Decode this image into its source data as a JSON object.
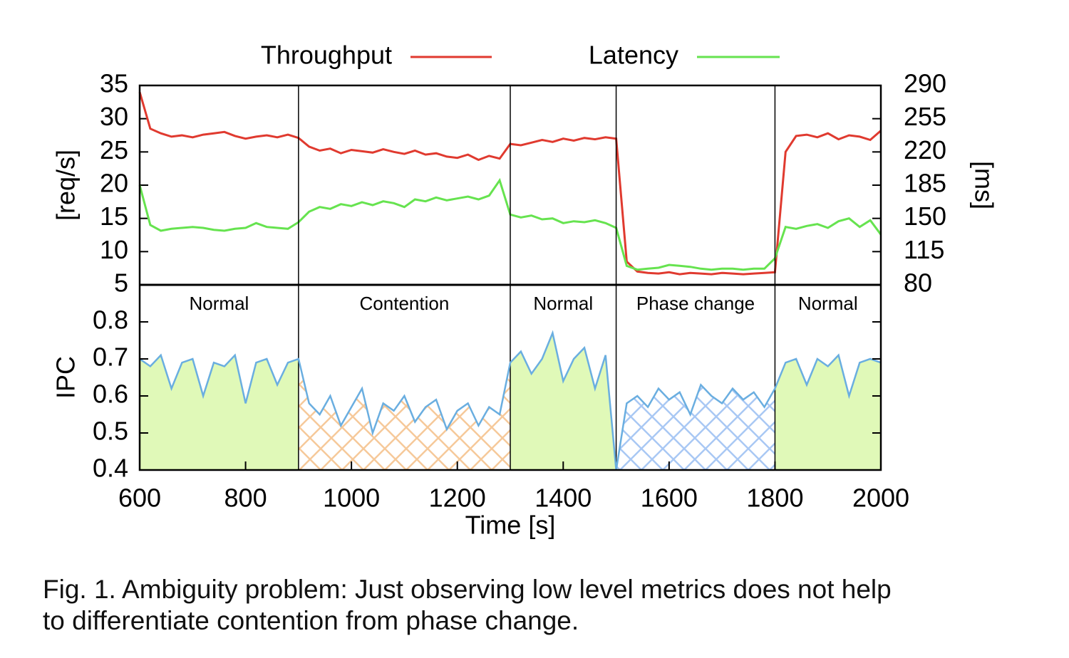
{
  "chart_data": [
    {
      "type": "line",
      "legend": "top",
      "ylabel": "[req/s]",
      "y2label": "[ms]",
      "xlim": [
        600,
        2000
      ],
      "ylim": [
        5,
        35
      ],
      "yticks": [
        5,
        10,
        15,
        20,
        25,
        30,
        35
      ],
      "y2lim": [
        80,
        290
      ],
      "y2ticks": [
        80,
        115,
        150,
        185,
        220,
        255,
        290
      ],
      "x": [
        600,
        620,
        640,
        660,
        680,
        700,
        720,
        740,
        760,
        780,
        800,
        820,
        840,
        860,
        880,
        900,
        920,
        940,
        960,
        980,
        1000,
        1020,
        1040,
        1060,
        1080,
        1100,
        1120,
        1140,
        1160,
        1180,
        1200,
        1220,
        1240,
        1260,
        1280,
        1300,
        1320,
        1340,
        1360,
        1380,
        1400,
        1420,
        1440,
        1460,
        1480,
        1500,
        1520,
        1540,
        1560,
        1580,
        1600,
        1620,
        1640,
        1660,
        1680,
        1700,
        1720,
        1740,
        1760,
        1780,
        1800,
        1820,
        1840,
        1860,
        1880,
        1900,
        1920,
        1940,
        1960,
        1980,
        2000
      ],
      "series": [
        {
          "name": "Throughput",
          "color": "#e03a2f",
          "values": [
            34,
            28.5,
            27.8,
            27.3,
            27.5,
            27.2,
            27.6,
            27.8,
            28,
            27.4,
            27,
            27.3,
            27.5,
            27.2,
            27.6,
            27.1,
            25.8,
            25.2,
            25.5,
            24.8,
            25.3,
            25.1,
            24.9,
            25.4,
            25,
            24.7,
            25.2,
            24.6,
            24.8,
            24.3,
            24.1,
            24.6,
            23.8,
            24.4,
            24,
            26.2,
            26,
            26.4,
            26.8,
            26.5,
            27,
            26.7,
            27.1,
            26.9,
            27.2,
            27,
            8.5,
            7,
            6.8,
            6.7,
            6.9,
            6.6,
            6.8,
            6.7,
            6.6,
            6.8,
            6.7,
            6.6,
            6.7,
            6.8,
            6.9,
            25,
            27.4,
            27.6,
            27.2,
            27.8,
            26.9,
            27.5,
            27.3,
            26.8,
            28.2
          ]
        },
        {
          "name": "Latency",
          "color": "#66e34f",
          "axis": "y2",
          "values": [
            185,
            143,
            137,
            139,
            140,
            141,
            140,
            138,
            137,
            139,
            140,
            145,
            141,
            140,
            139,
            146,
            157,
            162,
            160,
            165,
            163,
            167,
            164,
            168,
            166,
            162,
            170,
            168,
            172,
            169,
            171,
            173,
            170,
            174,
            190,
            154,
            151,
            153,
            149,
            150,
            145,
            147,
            146,
            148,
            145,
            140,
            100,
            96,
            97,
            98,
            101,
            100,
            99,
            97,
            96,
            97,
            97,
            96,
            97,
            97,
            108,
            141,
            139,
            142,
            144,
            140,
            147,
            150,
            141,
            148,
            133
          ]
        }
      ]
    },
    {
      "type": "area",
      "ylabel": "IPC",
      "xlabel": "Time [s]",
      "xlim": [
        600,
        2000
      ],
      "xticks": [
        600,
        800,
        1000,
        1200,
        1400,
        1600,
        1800,
        2000
      ],
      "ylim": [
        0.4,
        0.9
      ],
      "yticks": [
        0.4,
        0.5,
        0.6,
        0.7,
        0.8
      ],
      "x": [
        600,
        620,
        640,
        660,
        680,
        700,
        720,
        740,
        760,
        780,
        800,
        820,
        840,
        860,
        880,
        900,
        920,
        940,
        960,
        980,
        1000,
        1020,
        1040,
        1060,
        1080,
        1100,
        1120,
        1140,
        1160,
        1180,
        1200,
        1220,
        1240,
        1260,
        1280,
        1300,
        1320,
        1340,
        1360,
        1380,
        1400,
        1420,
        1440,
        1460,
        1480,
        1500,
        1520,
        1540,
        1560,
        1580,
        1600,
        1620,
        1640,
        1660,
        1680,
        1700,
        1720,
        1740,
        1760,
        1780,
        1800,
        1820,
        1840,
        1860,
        1880,
        1900,
        1920,
        1940,
        1960,
        1980,
        2000
      ],
      "color": "#6aaee0",
      "values": [
        0.7,
        0.68,
        0.71,
        0.62,
        0.69,
        0.7,
        0.6,
        0.69,
        0.68,
        0.71,
        0.58,
        0.69,
        0.7,
        0.63,
        0.69,
        0.7,
        0.58,
        0.55,
        0.6,
        0.52,
        0.57,
        0.62,
        0.5,
        0.58,
        0.56,
        0.6,
        0.53,
        0.57,
        0.59,
        0.51,
        0.56,
        0.58,
        0.52,
        0.57,
        0.55,
        0.69,
        0.72,
        0.66,
        0.7,
        0.77,
        0.64,
        0.7,
        0.73,
        0.62,
        0.71,
        0.4,
        0.58,
        0.6,
        0.57,
        0.62,
        0.59,
        0.61,
        0.55,
        0.63,
        0.6,
        0.58,
        0.62,
        0.59,
        0.61,
        0.57,
        0.62,
        0.69,
        0.7,
        0.63,
        0.7,
        0.68,
        0.71,
        0.6,
        0.69,
        0.7,
        0.69
      ],
      "phases": [
        {
          "label": "Normal",
          "start": 600,
          "end": 900,
          "fill": "#e0f9b8",
          "hatch": false
        },
        {
          "label": "Contention",
          "start": 900,
          "end": 1300,
          "fill": "#f6c99a",
          "hatch": true
        },
        {
          "label": "Normal",
          "start": 1300,
          "end": 1500,
          "fill": "#e0f9b8",
          "hatch": false
        },
        {
          "label": "Phase change",
          "start": 1500,
          "end": 1800,
          "fill": "#a9c8f4",
          "hatch": true
        },
        {
          "label": "Normal",
          "start": 1800,
          "end": 2000,
          "fill": "#e0f9b8",
          "hatch": false
        }
      ]
    }
  ],
  "caption": [
    "Fig. 1. Ambiguity problem: Just observing low level metrics does not help",
    "to differentiate contention from phase change."
  ]
}
